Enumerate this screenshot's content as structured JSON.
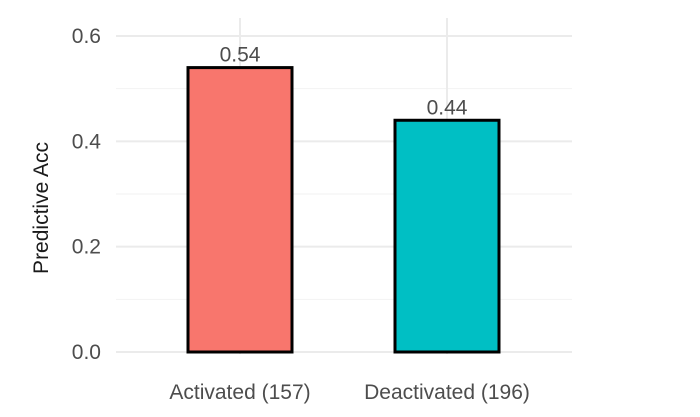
{
  "chart_data": {
    "type": "bar",
    "categories": [
      "Activated (157)",
      "Deactivated (196)"
    ],
    "values": [
      0.54,
      0.44
    ],
    "value_labels": [
      "0.54",
      "0.44"
    ],
    "colors": [
      "#f8766d",
      "#00bfc4"
    ],
    "xlabel": "",
    "ylabel": "Predictive Acc",
    "ylim": [
      0,
      0.6
    ],
    "yticks": [
      0,
      0.2,
      0.4,
      0.6
    ],
    "ytick_labels": [
      "0.0",
      "0.2",
      "0.4",
      "0.6"
    ],
    "grid": true,
    "legend": "none"
  }
}
